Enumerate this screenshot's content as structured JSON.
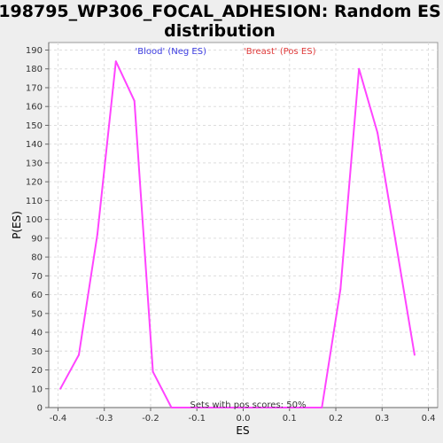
{
  "chart_data": {
    "type": "line",
    "title_line1": "198795_WP306_FOCAL_ADHESION: Random ES",
    "title_line2": "distribution",
    "xlabel": "ES",
    "ylabel": "P(ES)",
    "xlim": [
      -0.42,
      0.42
    ],
    "ylim": [
      0,
      194
    ],
    "x_ticks": [
      -0.4,
      -0.3,
      -0.2,
      -0.1,
      0.0,
      0.1,
      0.2,
      0.3,
      0.4
    ],
    "x_tick_labels": [
      "-0.4",
      "-0.3",
      "-0.2",
      "-0.1",
      "0.0",
      "0.1",
      "0.2",
      "0.3",
      "0.4"
    ],
    "y_ticks": [
      0,
      10,
      20,
      30,
      40,
      50,
      60,
      70,
      80,
      90,
      100,
      110,
      120,
      130,
      140,
      150,
      160,
      170,
      180,
      190
    ],
    "legend": [
      {
        "label": "'Blood' (Neg ES)",
        "color": "#3a3ae0"
      },
      {
        "label": "'Breast' (Pos ES)",
        "color": "#e03a3a"
      }
    ],
    "annotation": "Sets with pos scores: 50%",
    "grid": true,
    "series": [
      {
        "name": "Random ES distribution",
        "color": "#ff44ff",
        "x": [
          -0.395,
          -0.355,
          -0.315,
          -0.275,
          -0.235,
          -0.195,
          -0.155,
          -0.115,
          -0.075,
          -0.035,
          0.005,
          0.045,
          0.085,
          0.125,
          0.17,
          0.21,
          0.25,
          0.29,
          0.33,
          0.37
        ],
        "y": [
          10,
          28,
          92,
          184,
          163,
          19,
          0,
          0,
          0,
          0,
          0,
          0,
          0,
          0,
          0,
          63,
          180,
          146,
          87,
          28
        ]
      }
    ]
  }
}
